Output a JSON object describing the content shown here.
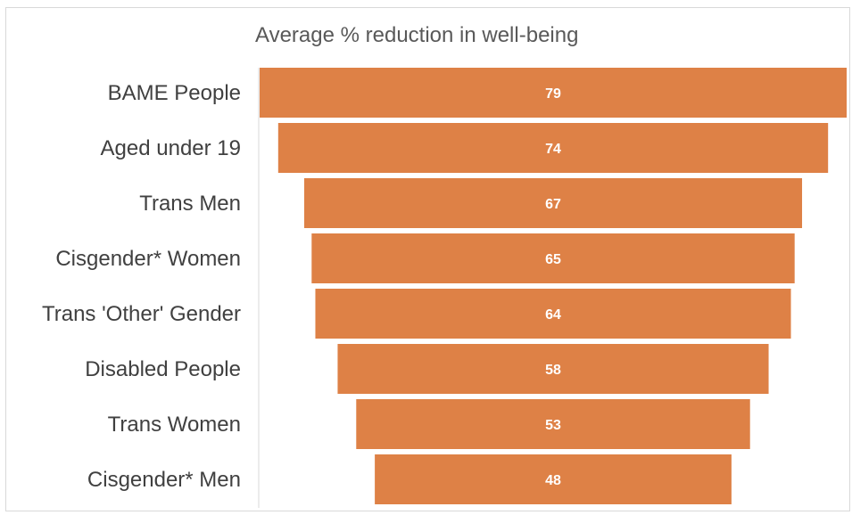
{
  "chart_data": {
    "type": "bar",
    "orientation": "horizontal-funnel",
    "title": "Average % reduction in well-being",
    "categories": [
      "BAME People",
      "Aged under 19",
      "Trans Men",
      "Cisgender* Women",
      "Trans 'Other' Gender",
      "Disabled People",
      "Trans Women",
      "Cisgender* Men"
    ],
    "values": [
      79,
      74,
      67,
      65,
      64,
      58,
      53,
      48
    ],
    "data_labels": [
      "79",
      "74",
      "67",
      "65",
      "64",
      "58",
      "53",
      "48"
    ],
    "bar_color": "#DE8146",
    "grid": false,
    "legend": "none"
  }
}
